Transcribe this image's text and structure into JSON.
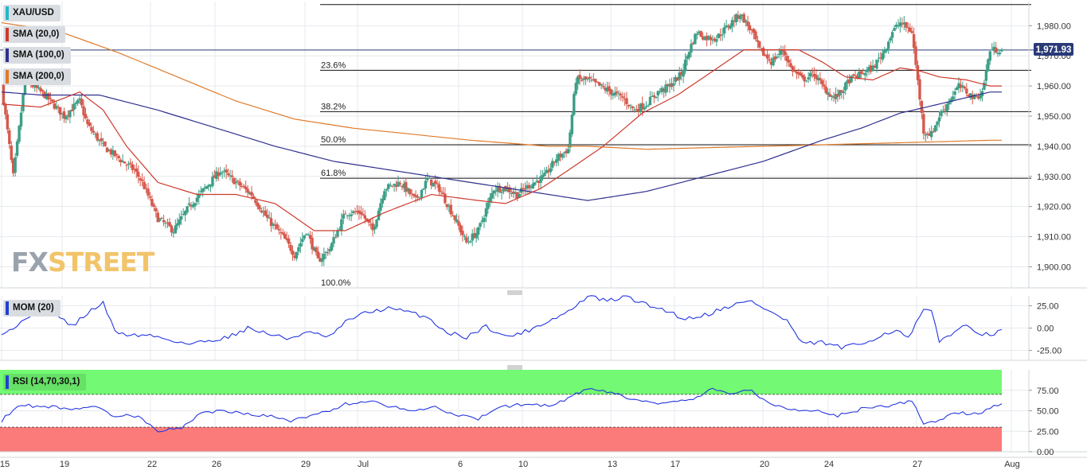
{
  "chart_data": {
    "type": "candlestick",
    "symbol": "XAU/USD",
    "indicators": [
      {
        "name": "SMA (20,0)",
        "color": "#cc3a2c"
      },
      {
        "name": "SMA (100,0)",
        "color": "#2e2f8e"
      },
      {
        "name": "SMA (200,0)",
        "color": "#e07a28"
      }
    ],
    "last_price": "1,971.93",
    "price_axis": {
      "range": [
        1893,
        1988
      ],
      "ticks": [
        1900,
        1910,
        1920,
        1930,
        1940,
        1950,
        1960,
        1970,
        1980
      ],
      "tick_labels": [
        "1,900.00",
        "1,910.00",
        "1,920.00",
        "1,930.00",
        "1,940.00",
        "1,950.00",
        "1,960.00",
        "1,970.00",
        "1,980.00"
      ]
    },
    "fibonacci": {
      "high": 1987,
      "low": 1893,
      "levels": [
        {
          "label": "23.6%",
          "value": 1965.2
        },
        {
          "label": "38.2%",
          "value": 1951.5
        },
        {
          "label": "50.0%",
          "value": 1940.5
        },
        {
          "label": "61.8%",
          "value": 1929.4
        },
        {
          "label": "100.0%",
          "value": 1893.0
        }
      ]
    },
    "x_axis": {
      "labels": [
        "15",
        "19",
        "22",
        "26",
        "29",
        "Jul",
        "6",
        "10",
        "13",
        "17",
        "20",
        "24",
        "27",
        "Aug"
      ]
    },
    "keypoints": {
      "close": [
        [
          0,
          1960
        ],
        [
          6,
          1930
        ],
        [
          12,
          1962
        ],
        [
          22,
          1957
        ],
        [
          32,
          1950
        ],
        [
          40,
          1955
        ],
        [
          44,
          1947
        ],
        [
          52,
          1940
        ],
        [
          60,
          1936
        ],
        [
          68,
          1932
        ],
        [
          72,
          1928
        ],
        [
          80,
          1916
        ],
        [
          88,
          1912
        ],
        [
          96,
          1920
        ],
        [
          104,
          1926
        ],
        [
          112,
          1932
        ],
        [
          120,
          1928
        ],
        [
          128,
          1924
        ],
        [
          136,
          1916
        ],
        [
          144,
          1910
        ],
        [
          150,
          1904
        ],
        [
          156,
          1912
        ],
        [
          162,
          1902
        ],
        [
          168,
          1906
        ],
        [
          176,
          1918
        ],
        [
          184,
          1918
        ],
        [
          190,
          1912
        ],
        [
          196,
          1926
        ],
        [
          204,
          1928
        ],
        [
          212,
          1922
        ],
        [
          218,
          1929
        ],
        [
          224,
          1926
        ],
        [
          232,
          1916
        ],
        [
          238,
          1908
        ],
        [
          244,
          1912
        ],
        [
          252,
          1926
        ],
        [
          258,
          1926
        ],
        [
          264,
          1924
        ],
        [
          270,
          1927
        ],
        [
          278,
          1930
        ],
        [
          284,
          1936
        ],
        [
          290,
          1939
        ],
        [
          294,
          1962
        ],
        [
          300,
          1962
        ],
        [
          306,
          1960
        ],
        [
          312,
          1958
        ],
        [
          318,
          1956
        ],
        [
          324,
          1952
        ],
        [
          330,
          1954
        ],
        [
          336,
          1958
        ],
        [
          342,
          1960
        ],
        [
          348,
          1964
        ],
        [
          352,
          1972
        ],
        [
          356,
          1978
        ],
        [
          360,
          1976
        ],
        [
          366,
          1976
        ],
        [
          372,
          1980
        ],
        [
          378,
          1984
        ],
        [
          384,
          1978
        ],
        [
          388,
          1972
        ],
        [
          394,
          1968
        ],
        [
          400,
          1972
        ],
        [
          404,
          1966
        ],
        [
          410,
          1962
        ],
        [
          416,
          1964
        ],
        [
          420,
          1960
        ],
        [
          426,
          1956
        ],
        [
          430,
          1958
        ],
        [
          434,
          1962
        ],
        [
          440,
          1964
        ],
        [
          446,
          1966
        ],
        [
          452,
          1972
        ],
        [
          456,
          1978
        ],
        [
          460,
          1981
        ],
        [
          466,
          1978
        ],
        [
          470,
          1956
        ],
        [
          472,
          1945
        ],
        [
          476,
          1944
        ],
        [
          480,
          1950
        ],
        [
          486,
          1956
        ],
        [
          490,
          1960
        ],
        [
          494,
          1958
        ],
        [
          498,
          1956
        ],
        [
          502,
          1958
        ],
        [
          506,
          1972
        ]
      ],
      "sma20": [
        [
          0,
          1954
        ],
        [
          20,
          1953
        ],
        [
          40,
          1958
        ],
        [
          52,
          1952
        ],
        [
          64,
          1940
        ],
        [
          80,
          1928
        ],
        [
          100,
          1924
        ],
        [
          120,
          1924
        ],
        [
          140,
          1921
        ],
        [
          160,
          1912
        ],
        [
          176,
          1912
        ],
        [
          196,
          1918
        ],
        [
          220,
          1924
        ],
        [
          244,
          1922
        ],
        [
          258,
          1921
        ],
        [
          276,
          1926
        ],
        [
          290,
          1932
        ],
        [
          308,
          1940
        ],
        [
          328,
          1951
        ],
        [
          346,
          1957
        ],
        [
          362,
          1964
        ],
        [
          380,
          1972
        ],
        [
          394,
          1972
        ],
        [
          408,
          1972
        ],
        [
          420,
          1968
        ],
        [
          432,
          1963
        ],
        [
          446,
          1962
        ],
        [
          460,
          1966
        ],
        [
          470,
          1965
        ],
        [
          480,
          1963
        ],
        [
          494,
          1962
        ],
        [
          506,
          1960
        ]
      ],
      "sma100": [
        [
          0,
          1958
        ],
        [
          20,
          1957
        ],
        [
          50,
          1957
        ],
        [
          80,
          1952
        ],
        [
          110,
          1946
        ],
        [
          140,
          1940
        ],
        [
          170,
          1935
        ],
        [
          200,
          1932
        ],
        [
          230,
          1929
        ],
        [
          260,
          1926
        ],
        [
          290,
          1923
        ],
        [
          300,
          1922
        ],
        [
          330,
          1925
        ],
        [
          360,
          1930
        ],
        [
          390,
          1935
        ],
        [
          420,
          1942
        ],
        [
          440,
          1946
        ],
        [
          460,
          1951
        ],
        [
          480,
          1954
        ],
        [
          506,
          1958
        ]
      ],
      "sma200": [
        [
          0,
          1981
        ],
        [
          30,
          1978
        ],
        [
          60,
          1971
        ],
        [
          90,
          1963
        ],
        [
          120,
          1955
        ],
        [
          150,
          1949
        ],
        [
          180,
          1946
        ],
        [
          210,
          1944
        ],
        [
          240,
          1942
        ],
        [
          260,
          1941
        ],
        [
          280,
          1940
        ],
        [
          300,
          1940
        ],
        [
          330,
          1939
        ],
        [
          360,
          1939.5
        ],
        [
          390,
          1940
        ],
        [
          420,
          1940.5
        ],
        [
          450,
          1941
        ],
        [
          480,
          1941.5
        ],
        [
          506,
          1942
        ]
      ]
    },
    "momentum": {
      "name": "MOM (20)",
      "range": [
        -36,
        36
      ],
      "ticks": [
        25,
        0,
        -25
      ],
      "tick_labels": [
        "25.00",
        "0.00",
        "-25.00"
      ],
      "keypoints": [
        [
          0,
          -5
        ],
        [
          8,
          2
        ],
        [
          16,
          18
        ],
        [
          26,
          18
        ],
        [
          36,
          2
        ],
        [
          46,
          20
        ],
        [
          52,
          28
        ],
        [
          58,
          -4
        ],
        [
          66,
          -8
        ],
        [
          76,
          -8
        ],
        [
          84,
          -12
        ],
        [
          96,
          -18
        ],
        [
          106,
          -14
        ],
        [
          116,
          -10
        ],
        [
          126,
          0
        ],
        [
          136,
          -6
        ],
        [
          146,
          -12
        ],
        [
          156,
          -5
        ],
        [
          168,
          -10
        ],
        [
          178,
          10
        ],
        [
          188,
          18
        ],
        [
          198,
          22
        ],
        [
          208,
          18
        ],
        [
          218,
          12
        ],
        [
          228,
          -5
        ],
        [
          238,
          -10
        ],
        [
          248,
          2
        ],
        [
          258,
          -10
        ],
        [
          268,
          -4
        ],
        [
          278,
          6
        ],
        [
          288,
          16
        ],
        [
          294,
          24
        ],
        [
          300,
          36
        ],
        [
          310,
          30
        ],
        [
          320,
          35
        ],
        [
          330,
          26
        ],
        [
          340,
          20
        ],
        [
          350,
          10
        ],
        [
          362,
          16
        ],
        [
          374,
          26
        ],
        [
          384,
          30
        ],
        [
          392,
          20
        ],
        [
          402,
          8
        ],
        [
          410,
          -18
        ],
        [
          420,
          -16
        ],
        [
          430,
          -22
        ],
        [
          440,
          -18
        ],
        [
          450,
          -8
        ],
        [
          458,
          -2
        ],
        [
          464,
          -12
        ],
        [
          472,
          20
        ],
        [
          476,
          18
        ],
        [
          480,
          -15
        ],
        [
          488,
          -3
        ],
        [
          494,
          2
        ],
        [
          502,
          -6
        ],
        [
          508,
          -10
        ],
        [
          512,
          0
        ]
      ]
    },
    "rsi": {
      "name": "RSI (14,70,30,1)",
      "range": [
        0,
        100
      ],
      "overbought": 70,
      "oversold": 30,
      "ticks": [
        75,
        50,
        25,
        0
      ],
      "tick_labels": [
        "75.00",
        "50.00",
        "25.00",
        "0.00"
      ],
      "keypoints": [
        [
          0,
          38
        ],
        [
          8,
          56
        ],
        [
          16,
          56
        ],
        [
          26,
          55
        ],
        [
          36,
          52
        ],
        [
          46,
          56
        ],
        [
          58,
          44
        ],
        [
          70,
          44
        ],
        [
          80,
          26
        ],
        [
          92,
          28
        ],
        [
          102,
          48
        ],
        [
          114,
          50
        ],
        [
          124,
          46
        ],
        [
          136,
          44
        ],
        [
          148,
          38
        ],
        [
          160,
          44
        ],
        [
          176,
          58
        ],
        [
          188,
          62
        ],
        [
          200,
          55
        ],
        [
          212,
          50
        ],
        [
          222,
          55
        ],
        [
          232,
          45
        ],
        [
          244,
          40
        ],
        [
          256,
          55
        ],
        [
          268,
          58
        ],
        [
          282,
          56
        ],
        [
          292,
          68
        ],
        [
          300,
          76
        ],
        [
          312,
          72
        ],
        [
          326,
          62
        ],
        [
          340,
          58
        ],
        [
          354,
          65
        ],
        [
          364,
          76
        ],
        [
          374,
          72
        ],
        [
          384,
          74
        ],
        [
          394,
          58
        ],
        [
          404,
          52
        ],
        [
          416,
          50
        ],
        [
          428,
          44
        ],
        [
          440,
          52
        ],
        [
          454,
          56
        ],
        [
          466,
          62
        ],
        [
          472,
          34
        ],
        [
          480,
          38
        ],
        [
          488,
          48
        ],
        [
          496,
          46
        ],
        [
          504,
          50
        ],
        [
          512,
          60
        ]
      ]
    }
  }
}
